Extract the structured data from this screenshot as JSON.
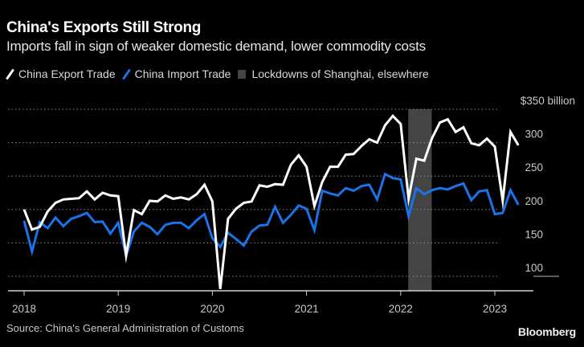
{
  "title": "China's Exports Still Strong",
  "subtitle": "Imports fall in sign of weaker domestic demand, lower commodity costs",
  "legend": [
    {
      "label": "China Export Trade",
      "color": "#ffffff",
      "kind": "line"
    },
    {
      "label": "China Import Trade",
      "color": "#1a73e8",
      "kind": "line"
    },
    {
      "label": "Lockdowns of Shanghai, elsewhere",
      "color": "#444444",
      "kind": "band"
    }
  ],
  "source": "Source: China's General Administration of Customs",
  "brand": "Bloomberg",
  "chart_data": {
    "type": "line",
    "title": "China's Exports Still Strong",
    "subtitle": "Imports fall in sign of weaker domestic demand, lower commodity costs",
    "xlabel": "",
    "ylabel": "",
    "y_unit_label": "$350 billion",
    "ylim": [
      80,
      350
    ],
    "yticks": [
      100,
      150,
      200,
      250,
      300,
      350
    ],
    "ytick_labels": [
      "100",
      "150",
      "200",
      "250",
      "300",
      "$350 billion"
    ],
    "xticks": [
      "2018",
      "2019",
      "2020",
      "2021",
      "2022",
      "2023"
    ],
    "x_start": "2018-01",
    "x_frequency": "monthly",
    "x_range_years": [
      2017.95,
      2023.4
    ],
    "grid": true,
    "grid_style": "dotted",
    "legend_position": "top-left",
    "shaded_region": {
      "label": "Lockdowns of Shanghai, elsewhere",
      "start": 2022.08,
      "end": 2022.33,
      "color": "#444444"
    },
    "series": [
      {
        "name": "China Export Trade",
        "color": "#ffffff",
        "values": [
          200,
          170,
          174,
          197,
          210,
          215,
          216,
          217,
          227,
          215,
          225,
          221,
          220,
          131,
          199,
          193,
          213,
          212,
          221,
          216,
          218,
          215,
          223,
          237,
          212,
          81,
          186,
          201,
          210,
          212,
          236,
          234,
          238,
          237,
          267,
          281,
          264,
          205,
          241,
          264,
          264,
          282,
          283,
          295,
          305,
          300,
          326,
          340,
          328,
          216,
          276,
          273,
          307,
          330,
          335,
          316,
          323,
          299,
          296,
          306,
          294,
          213,
          316,
          296
        ]
      },
      {
        "name": "China Import Trade",
        "color": "#1a73e8",
        "values": [
          183,
          137,
          181,
          172,
          188,
          175,
          186,
          190,
          195,
          181,
          182,
          164,
          180,
          131,
          167,
          180,
          174,
          163,
          177,
          180,
          180,
          172,
          184,
          193,
          157,
          144,
          165,
          156,
          146,
          167,
          176,
          177,
          204,
          180,
          192,
          206,
          201,
          169,
          228,
          224,
          221,
          232,
          228,
          235,
          237,
          215,
          253,
          247,
          245,
          190,
          232,
          223,
          229,
          232,
          230,
          235,
          239,
          214,
          227,
          229,
          193,
          195,
          229,
          207
        ]
      }
    ]
  }
}
